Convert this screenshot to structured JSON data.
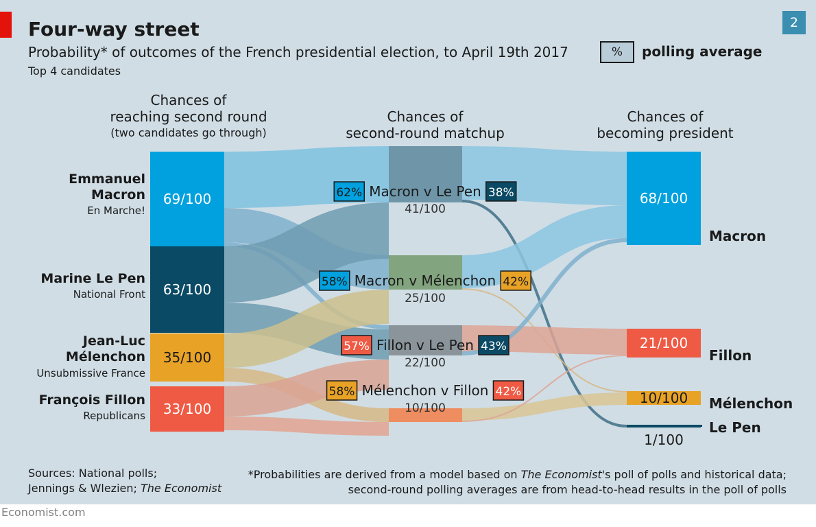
{
  "header": {
    "title": "Four-way street",
    "subtitle": "Probability* of outcomes of the French presidential election, to April 19th 2017",
    "subsubtitle": "Top 4 candidates",
    "chart_number": "2",
    "legend_symbol": "%",
    "legend_label": "polling average"
  },
  "columns": {
    "left_line1": "Chances of",
    "left_line2": "reaching second round",
    "left_line3": "(two candidates go through)",
    "middle_line1": "Chances of",
    "middle_line2": "second-round matchup",
    "right_line1": "Chances of",
    "right_line2": "becoming president"
  },
  "candidates": [
    {
      "name_line1": "Emmanuel",
      "name_line2": "Macron",
      "party": "En Marche!"
    },
    {
      "name_line1": "Marine Le Pen",
      "name_line2": "",
      "party": "National Front"
    },
    {
      "name_line1": "Jean-Luc",
      "name_line2": "Mélenchon",
      "party": "Unsubmissive France"
    },
    {
      "name_line1": "François Fillon",
      "name_line2": "",
      "party": "Republicans"
    }
  ],
  "winners": [
    "Macron",
    "Fillon",
    "Mélenchon",
    "Le Pen"
  ],
  "footer": {
    "sources_line1": "Sources: National polls;",
    "sources_line2a": "Jennings & Wlezien; ",
    "sources_line2b": "The Economist",
    "footnote_a": "*Probabilities are derived from a model based on ",
    "footnote_b": "The Economist",
    "footnote_c": "'s poll of polls and historical data; second-round polling averages are from head-to-head results in the poll of polls",
    "site": "Economist.com"
  },
  "colors": {
    "panel": "#d0dde5",
    "macron": "#00a1de",
    "le_pen": "#0b4a64",
    "melenchon": "#e8a226",
    "fillon": "#ef5a44",
    "matchup_gray": "#6a8c9c",
    "brand_red": "#e3120b"
  },
  "chart_data": {
    "type": "sankey",
    "first_round": [
      {
        "candidate": "Emmanuel Macron",
        "label": "69/100",
        "value": 69
      },
      {
        "candidate": "Marine Le Pen",
        "label": "63/100",
        "value": 63
      },
      {
        "candidate": "Jean-Luc Mélenchon",
        "label": "35/100",
        "value": 35
      },
      {
        "candidate": "François Fillon",
        "label": "33/100",
        "value": 33
      }
    ],
    "matchups": [
      {
        "name": "Macron v Le Pen",
        "label": "41/100",
        "value": 41,
        "poll_a": {
          "candidate": "Macron",
          "label": "62%"
        },
        "poll_b": {
          "candidate": "Le Pen",
          "label": "38%"
        }
      },
      {
        "name": "Macron v Mélenchon",
        "label": "25/100",
        "value": 25,
        "poll_a": {
          "candidate": "Macron",
          "label": "58%"
        },
        "poll_b": {
          "candidate": "Mélenchon",
          "label": "42%"
        }
      },
      {
        "name": "Fillon v Le Pen",
        "label": "22/100",
        "value": 22,
        "poll_a": {
          "candidate": "Fillon",
          "label": "57%"
        },
        "poll_b": {
          "candidate": "Le Pen",
          "label": "43%"
        }
      },
      {
        "name": "Mélenchon v Fillon",
        "label": "10/100",
        "value": 10,
        "poll_a": {
          "candidate": "Mélenchon",
          "label": "58%"
        },
        "poll_b": {
          "candidate": "Fillon",
          "label": "42%"
        }
      }
    ],
    "president": [
      {
        "candidate": "Macron",
        "label": "68/100",
        "value": 68
      },
      {
        "candidate": "Fillon",
        "label": "21/100",
        "value": 21
      },
      {
        "candidate": "Mélenchon",
        "label": "10/100",
        "value": 10
      },
      {
        "candidate": "Le Pen",
        "label": "1/100",
        "value": 1
      }
    ]
  }
}
